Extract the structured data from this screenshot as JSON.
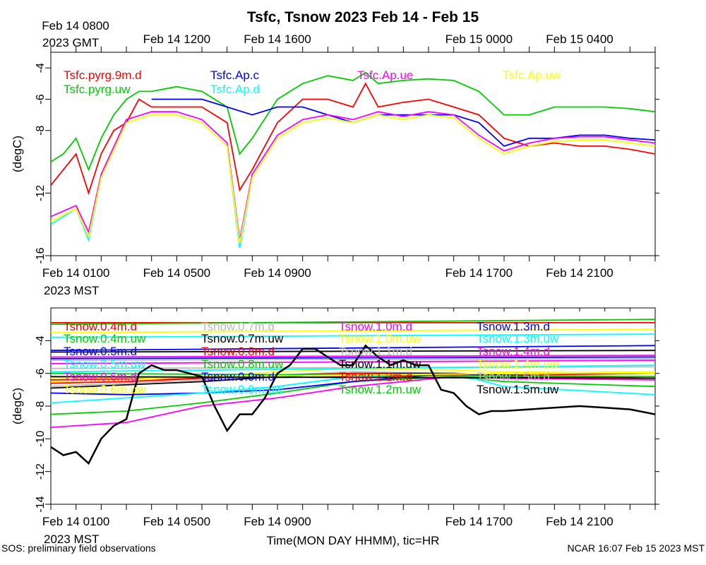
{
  "chart_data": [
    {
      "type": "line",
      "title": "Tsfc, Tsnow 2023 Feb 14 - Feb 15",
      "top_axis_labels": [
        {
          "label": "Feb 14 0800",
          "hour": 8
        },
        {
          "label": "Feb 14 1200",
          "hour": 12
        },
        {
          "label": "Feb 14 1600",
          "hour": 16
        },
        {
          "label": "Feb 15 0000",
          "hour": 24
        },
        {
          "label": "Feb 15 0400",
          "hour": 28
        }
      ],
      "top_axis_unit": "2023 GMT",
      "bottom_axis_labels": [
        {
          "label": "Feb 14 0100",
          "hour": 1
        },
        {
          "label": "Feb 14 0500",
          "hour": 5
        },
        {
          "label": "Feb 14 0900",
          "hour": 9
        },
        {
          "label": "Feb 14 1700",
          "hour": 17
        },
        {
          "label": "Feb 14 2100",
          "hour": 21
        }
      ],
      "bottom_axis_unit": "2023 MST",
      "x_range_hours_mst": [
        0,
        24
      ],
      "ylabel": "(degC)",
      "ylim": [
        -16,
        -3
      ],
      "yticks": [
        "-4",
        "-6",
        "-8",
        "-12",
        "-16"
      ],
      "grid": false,
      "series": [
        {
          "name": "Tsfc.pyrg.9m.d",
          "color": "#ff0000",
          "x": [
            0,
            0.5,
            1,
            1.5,
            2,
            2.5,
            3,
            3.5,
            4,
            5,
            6,
            7,
            7.5,
            8,
            9,
            10,
            11,
            12,
            12.5,
            13,
            14,
            15,
            16,
            17,
            18,
            19,
            20,
            21,
            22,
            23,
            24
          ],
          "values": [
            -11.5,
            -10.5,
            -9.5,
            -12,
            -9.5,
            -8,
            -7.5,
            -6,
            -6.5,
            -6.5,
            -6.5,
            -7.5,
            -11.8,
            -10.5,
            -7.5,
            -6,
            -6,
            -6.5,
            -5,
            -6.5,
            -6.2,
            -6,
            -6.5,
            -7,
            -8.5,
            -9,
            -8.8,
            -9,
            -9,
            -9.2,
            -9.5
          ]
        },
        {
          "name": "Tsfc.pyrg.uw",
          "color": "#00cc00",
          "x": [
            0,
            0.5,
            1,
            1.5,
            2,
            2.5,
            3,
            3.5,
            4,
            5,
            6,
            7,
            7.5,
            8,
            9,
            10,
            11,
            12,
            12.5,
            13,
            14,
            15,
            16,
            17,
            18,
            19,
            20,
            21,
            22,
            23,
            24
          ],
          "values": [
            -10,
            -9.5,
            -8.5,
            -10.5,
            -8.5,
            -7,
            -6,
            -5.5,
            -5.5,
            -5.2,
            -5.5,
            -6.5,
            -9.5,
            -8.5,
            -6,
            -5,
            -4.5,
            -4.8,
            -4.3,
            -5,
            -4.8,
            -4.7,
            -4.8,
            -5.5,
            -7,
            -7,
            -6.5,
            -6.5,
            -6.5,
            -6.6,
            -6.8
          ]
        },
        {
          "name": "Tsfc.Ap.c",
          "color": "#0000ff",
          "x": [
            4,
            5,
            6,
            7,
            8,
            9,
            10,
            11,
            12,
            13,
            14,
            15,
            16,
            17,
            18,
            19,
            20,
            21,
            22,
            23,
            24
          ],
          "values": [
            -6,
            -6,
            -6,
            -6.5,
            -7,
            -6.5,
            -6.5,
            -7,
            -7.5,
            -7,
            -7,
            -7,
            -7,
            -7.5,
            -9,
            -8.5,
            -8.5,
            -8.3,
            -8.3,
            -8.5,
            -8.6
          ]
        },
        {
          "name": "Tsfc.Ap.d",
          "color": "#00ffff",
          "x": [
            0,
            1,
            1.5,
            2,
            3,
            4,
            5,
            6,
            7,
            7.5,
            8,
            9,
            10,
            11,
            12,
            13,
            14,
            15,
            16,
            17,
            18,
            19,
            20,
            21,
            22,
            23,
            24
          ],
          "values": [
            -14,
            -13,
            -15,
            -11,
            -7.5,
            -7,
            -7,
            -7.5,
            -9,
            -15.5,
            -11,
            -8.5,
            -7.5,
            -7.2,
            -7.5,
            -7,
            -7.3,
            -7,
            -7.2,
            -8.5,
            -9.5,
            -9,
            -8.7,
            -8.6,
            -8.6,
            -8.8,
            -9
          ]
        },
        {
          "name": "Tsfc.Ap.ue",
          "color": "#ff00ff",
          "x": [
            0,
            1,
            1.5,
            2,
            3,
            4,
            5,
            6,
            7,
            7.5,
            8,
            9,
            10,
            11,
            12,
            13,
            14,
            15,
            16,
            17,
            18,
            19,
            20,
            21,
            22,
            23,
            24
          ],
          "values": [
            -13.5,
            -12.8,
            -14.5,
            -10.8,
            -7.3,
            -6.8,
            -6.8,
            -7.3,
            -8.8,
            -15,
            -10.8,
            -8.3,
            -7.3,
            -7,
            -7.3,
            -6.8,
            -7.1,
            -6.8,
            -7,
            -8.3,
            -9.3,
            -8.8,
            -8.5,
            -8.4,
            -8.4,
            -8.6,
            -8.8
          ]
        },
        {
          "name": "Tsfc.Ap.uw",
          "color": "#ffff00",
          "x": [
            0,
            1,
            1.5,
            2,
            3,
            4,
            5,
            6,
            7,
            7.5,
            8,
            9,
            10,
            11,
            12,
            13,
            14,
            15,
            16,
            17,
            18,
            19,
            20,
            21,
            22,
            23,
            24
          ],
          "values": [
            -13.8,
            -13,
            -14.8,
            -11,
            -7.5,
            -7,
            -7,
            -7.5,
            -9,
            -15.2,
            -11,
            -8.5,
            -7.5,
            -7.2,
            -7.5,
            -7,
            -7.3,
            -7,
            -7.2,
            -8.5,
            -9.5,
            -9,
            -8.7,
            -8.6,
            -8.6,
            -8.8,
            -9
          ]
        }
      ]
    },
    {
      "type": "line",
      "ylabel": "(degC)",
      "xlabel": "Time(MON DAY HHMM), tic=HR",
      "bottom_axis_labels": [
        {
          "label": "Feb 14 0100",
          "hour": 1
        },
        {
          "label": "Feb 14 0500",
          "hour": 5
        },
        {
          "label": "Feb 14 0900",
          "hour": 9
        },
        {
          "label": "Feb 14 1700",
          "hour": 17
        },
        {
          "label": "Feb 14 2100",
          "hour": 21
        }
      ],
      "bottom_axis_unit": "2023 MST",
      "x_range_hours_mst": [
        0,
        24
      ],
      "ylim": [
        -14,
        -2
      ],
      "yticks": [
        "-4",
        "-6",
        "-8",
        "-10",
        "-12",
        "-14"
      ],
      "grid": false,
      "series": [
        {
          "name": "Tsnow.0.4m.d",
          "color": "#ff0000",
          "x": [
            0,
            24
          ],
          "values": [
            -2.9,
            -2.9
          ]
        },
        {
          "name": "Tsnow.0.4m.uw",
          "color": "#00cc00",
          "x": [
            0,
            24
          ],
          "values": [
            -3.0,
            -2.7
          ]
        },
        {
          "name": "Tsnow.0.5m.d",
          "color": "#0000ff",
          "x": [
            0,
            24
          ],
          "values": [
            -4.6,
            -4.3
          ]
        },
        {
          "name": "Tsnow.0.5m.uw",
          "color": "#00ffff",
          "x": [
            0,
            24
          ],
          "values": [
            -3.8,
            -3.6
          ]
        },
        {
          "name": "Tsnow.0.6m.d",
          "color": "#ff00ff",
          "x": [
            0,
            24
          ],
          "values": [
            -5.0,
            -4.9
          ]
        },
        {
          "name": "Tsnow.0.6m.uw",
          "color": "#ffff00",
          "x": [
            0,
            24
          ],
          "values": [
            -3.5,
            -3.3
          ]
        },
        {
          "name": "Tsnow.0.7m.d",
          "color": "#bbbbbb",
          "x": [
            0,
            24
          ],
          "values": [
            -5.7,
            -5.6
          ]
        },
        {
          "name": "Tsnow.0.7m.uw",
          "color": "#000000",
          "x": [
            0,
            24
          ],
          "values": [
            -4.7,
            -4.6
          ]
        },
        {
          "name": "Tsnow.0.8m.d",
          "color": "#ff0000",
          "x": [
            0,
            24
          ],
          "values": [
            -6.4,
            -6.0
          ]
        },
        {
          "name": "Tsnow.0.8m.uw",
          "color": "#00cc00",
          "x": [
            0,
            3,
            6,
            9,
            12,
            16,
            18,
            24
          ],
          "values": [
            -8.5,
            -8.3,
            -7.8,
            -7.2,
            -6.5,
            -6.2,
            -6.5,
            -6.8
          ]
        },
        {
          "name": "Tsnow.0.9m.d",
          "color": "#0000ff",
          "x": [
            0,
            3,
            6,
            9,
            12,
            16,
            18,
            24
          ],
          "values": [
            -7.2,
            -7.3,
            -7.2,
            -7.0,
            -6.5,
            -6.0,
            -6.2,
            -6.3
          ]
        },
        {
          "name": "Tsnow.0.9m.uw",
          "color": "#00ffff",
          "x": [
            0,
            3,
            6,
            9,
            12,
            16,
            18,
            24
          ],
          "values": [
            -7.8,
            -7.5,
            -7.2,
            -6.8,
            -6.2,
            -6.0,
            -6.8,
            -7.3
          ]
        },
        {
          "name": "Tsnow.1.0m.d",
          "color": "#ff00ff",
          "x": [
            0,
            3,
            6,
            9,
            12,
            16,
            18,
            24
          ],
          "values": [
            -9.3,
            -9.0,
            -8.0,
            -7.5,
            -6.8,
            -6.2,
            -6.3,
            -6.4
          ]
        },
        {
          "name": "Tsnow.1.0m.uw",
          "color": "#ffff00",
          "x": [
            0,
            3,
            6,
            9,
            12,
            16,
            18,
            24
          ],
          "values": [
            -6.5,
            -6.4,
            -6.2,
            -5.9,
            -5.7,
            -5.8,
            -5.9,
            -6.0
          ]
        },
        {
          "name": "Tsnow.1.1m.d",
          "color": "#bbbbbb",
          "x": [
            0,
            3,
            6,
            9,
            12,
            16,
            18,
            24
          ],
          "values": [
            -6.8,
            -6.6,
            -6.4,
            -6.1,
            -5.9,
            -6.0,
            -6.1,
            -6.2
          ]
        },
        {
          "name": "Tsnow.1.1m.uw",
          "color": "#000000",
          "x": [
            0,
            3,
            6,
            9,
            12,
            16,
            18,
            24
          ],
          "values": [
            -6.9,
            -6.7,
            -6.5,
            -6.2,
            -6.0,
            -6.0,
            -6.1,
            -6.3
          ]
        },
        {
          "name": "Tsnow.1.2m.d",
          "color": "#ff0000",
          "x": [
            0,
            3,
            6,
            9,
            12,
            16,
            18,
            24
          ],
          "values": [
            -6.6,
            -6.5,
            -6.3,
            -6.1,
            -6.0,
            -6.1,
            -6.2,
            -6.3
          ]
        },
        {
          "name": "Tsnow.1.2m.uw",
          "color": "#00cc00",
          "x": [
            0,
            24
          ],
          "values": [
            -6.0,
            -6.2
          ]
        },
        {
          "name": "Tsnow.1.3m.d",
          "color": "#0000ff",
          "x": [
            0,
            24
          ],
          "values": [
            -5.1,
            -5.0
          ]
        },
        {
          "name": "Tsnow.1.3m.uw",
          "color": "#00ffff",
          "x": [
            0,
            24
          ],
          "values": [
            -5.9,
            -5.5
          ]
        },
        {
          "name": "Tsnow.1.4m.d",
          "color": "#ff00ff",
          "x": [
            0,
            24
          ],
          "values": [
            -5.4,
            -5.2
          ]
        },
        {
          "name": "Tsnow.1.4m.uw",
          "color": "#ffff00",
          "x": [
            0,
            24
          ],
          "values": [
            -6.3,
            -5.9
          ]
        },
        {
          "name": "Tsnow.1.5m.d",
          "color": "#bbbbbb",
          "x": [
            0,
            24
          ],
          "values": [
            -5.2,
            -5.1
          ]
        },
        {
          "name": "Tsnow.1.5m.uw",
          "color": "#000000",
          "x": [
            0,
            24
          ],
          "values": [
            -6.2,
            -6.3
          ]
        },
        {
          "name": "",
          "color": "#000000",
          "role": "near-surface bundle",
          "x": [
            0,
            0.5,
            1,
            1.5,
            2,
            2.5,
            3,
            3.5,
            4,
            4.5,
            5,
            5.5,
            6,
            6.5,
            7,
            7.5,
            8,
            8.5,
            9,
            9.5,
            10,
            10.5,
            11,
            11.5,
            12,
            12.5,
            13,
            13.5,
            14,
            14.5,
            15,
            15.5,
            16,
            16.5,
            17,
            17.5,
            18,
            19,
            20,
            21,
            22,
            23,
            24
          ],
          "values": [
            -10.5,
            -11,
            -10.8,
            -11.5,
            -10,
            -9.2,
            -8.8,
            -6,
            -5.5,
            -5.8,
            -5.8,
            -6,
            -6.2,
            -8,
            -9.5,
            -8.5,
            -8.5,
            -7.5,
            -6,
            -5.5,
            -4.5,
            -4.5,
            -5,
            -5.5,
            -5.5,
            -4.3,
            -5,
            -5.5,
            -5.2,
            -5.5,
            -5.5,
            -7,
            -7.2,
            -8,
            -8.5,
            -8.3,
            -8.3,
            -8.2,
            -8.1,
            -8.0,
            -8.1,
            -8.2,
            -8.5
          ]
        }
      ]
    }
  ],
  "footer": {
    "left": "SOS: preliminary field observations",
    "right": "NCAR 16:07 Feb 15 2023 MST"
  }
}
